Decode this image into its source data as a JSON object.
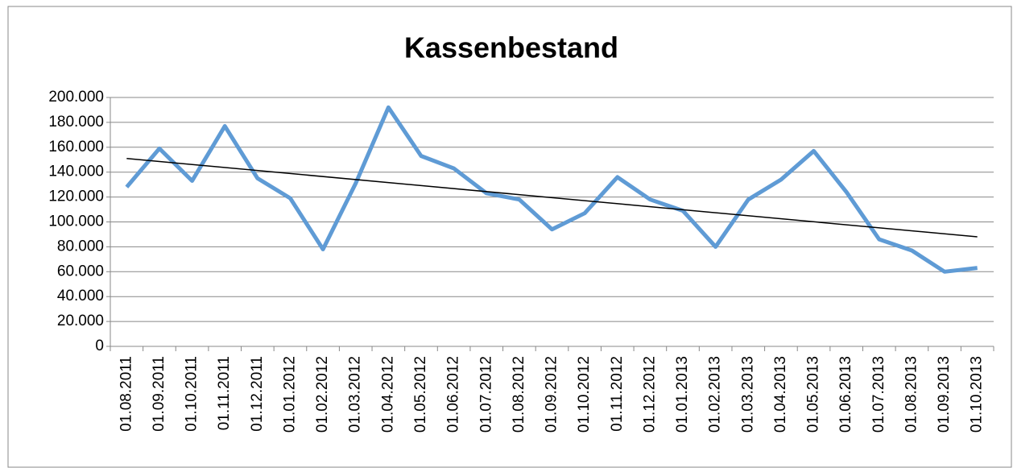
{
  "chart_data": {
    "type": "line",
    "title": "Kassenbestand",
    "categories": [
      "01.08.2011",
      "01.09.2011",
      "01.10.2011",
      "01.11.2011",
      "01.12.2011",
      "01.01.2012",
      "01.02.2012",
      "01.03.2012",
      "01.04.2012",
      "01.05.2012",
      "01.06.2012",
      "01.07.2012",
      "01.08.2012",
      "01.09.2012",
      "01.10.2012",
      "01.11.2012",
      "01.12.2012",
      "01.01.2013",
      "01.02.2013",
      "01.03.2013",
      "01.04.2013",
      "01.05.2013",
      "01.06.2013",
      "01.07.2013",
      "01.08.2013",
      "01.09.2013",
      "01.10.2013"
    ],
    "values": [
      128000,
      159000,
      133000,
      177000,
      135000,
      119000,
      78000,
      131000,
      192000,
      153000,
      143000,
      123000,
      118000,
      94000,
      107000,
      136000,
      118000,
      109000,
      80000,
      118000,
      134000,
      157000,
      124000,
      86000,
      77000,
      60000,
      63000
    ],
    "color": "#5f9bd5",
    "trendline": {
      "values": [
        151000,
        88000
      ],
      "color": "#000000"
    },
    "ylim": [
      0,
      200000
    ],
    "yticks": [
      0,
      {
        "value": 20000,
        "label": "20.000"
      },
      {
        "value": 40000,
        "label": "40.000"
      },
      {
        "value": 60000,
        "label": "60.000"
      },
      {
        "value": 80000,
        "label": "80.000"
      },
      {
        "value": 100000,
        "label": "100.000"
      },
      {
        "value": 120000,
        "label": "120.000"
      },
      {
        "value": 140000,
        "label": "140.000"
      },
      {
        "value": 160000,
        "label": "160.000"
      },
      {
        "value": 180000,
        "label": "180.000"
      },
      {
        "value": 200000,
        "label": "200.000"
      }
    ],
    "grid": true
  }
}
